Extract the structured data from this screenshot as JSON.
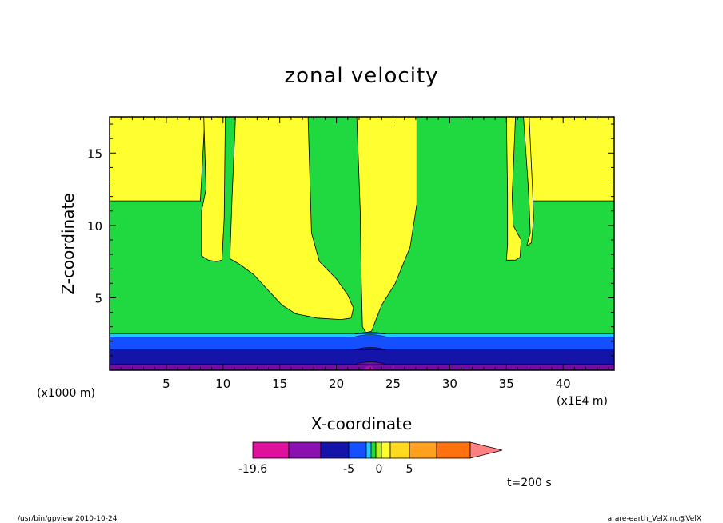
{
  "chart_data": {
    "type": "contour",
    "title": "zonal velocity",
    "xlabel": "X-coordinate",
    "ylabel": "Z-coordinate",
    "x_unit_left": "(x1000 m)",
    "x_unit_right": "(x1E4 m)",
    "xlim": [
      0,
      44.5
    ],
    "ylim": [
      0,
      17.5
    ],
    "x_ticks": [
      5,
      10,
      15,
      20,
      25,
      30,
      35,
      40
    ],
    "x_tick_labels": [
      "5",
      "10",
      "15",
      "20",
      "25",
      "30",
      "35",
      "40"
    ],
    "y_ticks": [
      5,
      10,
      15
    ],
    "y_tick_labels": [
      "5",
      "10",
      "15"
    ],
    "colorbar": {
      "colors": [
        "#e0109f",
        "#8a10b0",
        "#1414a8",
        "#1450ff",
        "#20c8ff",
        "#20d840",
        "#b8f020",
        "#ffff30",
        "#ffd820",
        "#ffa020",
        "#ff7010",
        "#ff2020",
        "#ff8080"
      ],
      "tick_labels": [
        "-19.6",
        "-5",
        "0",
        "5"
      ],
      "tick_values": [
        -19.6,
        -5,
        0,
        5
      ]
    },
    "layers": [
      {
        "name": "bottom-deep",
        "z_top": 0.4,
        "color": "#7010a0"
      },
      {
        "name": "bottom-navy",
        "z_top": 1.4,
        "color": "#1414a8"
      },
      {
        "name": "bottom-blue",
        "z_top": 2.3,
        "color": "#1450ff"
      },
      {
        "name": "bottom-cyan",
        "z_top": 2.5,
        "color": "#20c8ff"
      }
    ],
    "regions": [
      {
        "name": "yellow-top-left",
        "color": "#ffff30",
        "polygon": [
          [
            0,
            11.7
          ],
          [
            8.0,
            11.7
          ],
          [
            8.4,
            17.5
          ],
          [
            0,
            17.5
          ]
        ]
      },
      {
        "name": "yellow-top-right",
        "color": "#ffff30",
        "polygon": [
          [
            37.2,
            11.7
          ],
          [
            44.5,
            11.7
          ],
          [
            44.5,
            17.5
          ],
          [
            37.0,
            17.5
          ]
        ]
      },
      {
        "name": "yellow-column-1",
        "color": "#ffff30",
        "polygon": [
          [
            8.3,
            17.5
          ],
          [
            8.5,
            12.5
          ],
          [
            8.1,
            11.0
          ],
          [
            8.1,
            7.9
          ],
          [
            8.7,
            7.6
          ],
          [
            9.4,
            7.5
          ],
          [
            9.9,
            7.6
          ],
          [
            10.1,
            10.5
          ],
          [
            10.2,
            17.5
          ]
        ]
      },
      {
        "name": "yellow-column-2",
        "color": "#ffff30",
        "polygon": [
          [
            11.1,
            17.5
          ],
          [
            10.8,
            12.0
          ],
          [
            10.6,
            7.7
          ],
          [
            11.5,
            7.3
          ],
          [
            12.7,
            6.6
          ],
          [
            14.0,
            5.5
          ],
          [
            15.2,
            4.5
          ],
          [
            16.4,
            3.9
          ],
          [
            18.3,
            3.6
          ],
          [
            20.4,
            3.5
          ],
          [
            21.3,
            3.6
          ],
          [
            21.5,
            4.3
          ],
          [
            21.0,
            5.2
          ],
          [
            20.0,
            6.3
          ],
          [
            18.5,
            7.5
          ],
          [
            17.8,
            9.5
          ],
          [
            17.5,
            17.5
          ]
        ]
      },
      {
        "name": "yellow-column-3",
        "color": "#ffff30",
        "polygon": [
          [
            21.8,
            17.5
          ],
          [
            22.1,
            11.0
          ],
          [
            22.2,
            6.0
          ],
          [
            22.3,
            3.0
          ],
          [
            22.6,
            2.6
          ],
          [
            23.1,
            2.7
          ],
          [
            23.4,
            3.3
          ],
          [
            24.0,
            4.5
          ],
          [
            25.2,
            6.0
          ],
          [
            26.5,
            8.5
          ],
          [
            27.1,
            11.5
          ],
          [
            27.1,
            17.5
          ]
        ]
      },
      {
        "name": "yellow-column-4",
        "color": "#ffff30",
        "polygon": [
          [
            35.0,
            17.5
          ],
          [
            35.1,
            12.0
          ],
          [
            35.1,
            8.7
          ],
          [
            35.0,
            7.6
          ],
          [
            35.8,
            7.6
          ],
          [
            36.2,
            7.8
          ],
          [
            36.3,
            9.0
          ],
          [
            35.6,
            10.0
          ],
          [
            35.5,
            12.0
          ],
          [
            35.8,
            17.5
          ]
        ]
      },
      {
        "name": "yellow-column-5",
        "color": "#ffff30",
        "polygon": [
          [
            36.5,
            17.5
          ],
          [
            36.9,
            13.0
          ],
          [
            37.0,
            11.5
          ],
          [
            37.1,
            9.5
          ],
          [
            36.8,
            8.6
          ],
          [
            37.2,
            8.8
          ],
          [
            37.4,
            10.5
          ],
          [
            37.3,
            12.5
          ],
          [
            37.0,
            17.5
          ]
        ]
      }
    ],
    "annotation": "t=200 s"
  },
  "footer": {
    "left": "/usr/bin/gpview   2010-10-24",
    "right": "arare-earth_VelX.nc@VelX"
  }
}
